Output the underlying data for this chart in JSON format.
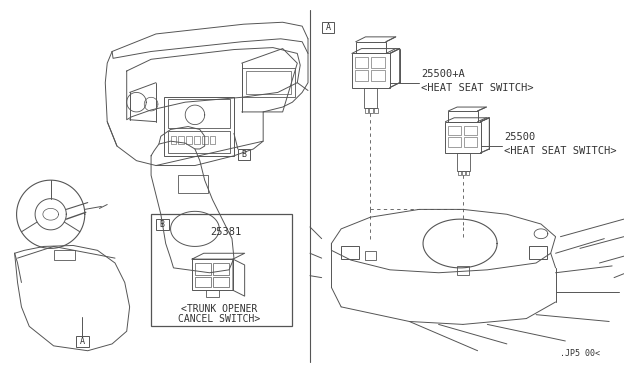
{
  "bg_color": "#ffffff",
  "line_color": "#555555",
  "text_color": "#333333",
  "fig_width": 6.4,
  "fig_height": 3.72,
  "dpi": 100,
  "watermark": ".JP5 00<",
  "labels": {
    "A_box_right": "A",
    "B_box_dash": "B",
    "B_box_detail": "B",
    "part1_num": "25500+A",
    "part1_desc": "<HEAT SEAT SWITCH>",
    "part2_num": "25500",
    "part2_desc": "<HEAT SEAT SWITCH>",
    "part3_num": "25381",
    "part3_desc1": "<TRUNK OPENER",
    "part3_desc2": "CANCEL SWITCH>"
  }
}
